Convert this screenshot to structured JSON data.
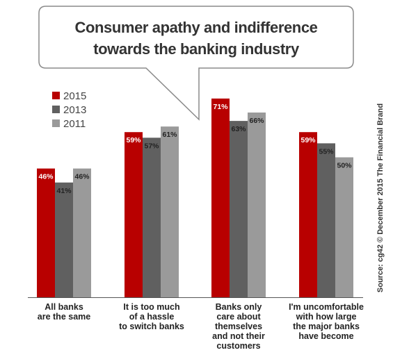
{
  "chart_data": {
    "type": "bar",
    "title_lines": [
      "Consumer apathy and indifference",
      "towards the banking industry"
    ],
    "categories": [
      [
        "All banks",
        "are the same"
      ],
      [
        "It is too much",
        "of a hassle",
        "to switch banks"
      ],
      [
        "Banks only",
        "care about",
        "themselves",
        "and not their",
        "customers"
      ],
      [
        "I'm uncomfortable",
        "with how large",
        "the major banks",
        "have become"
      ]
    ],
    "series": [
      {
        "name": "2015",
        "color": "#b80000",
        "values": [
          46,
          59,
          71,
          59
        ],
        "labels": [
          "46%",
          "59%",
          "71%",
          "59%"
        ]
      },
      {
        "name": "2013",
        "color": "#606060",
        "values": [
          41,
          57,
          63,
          55
        ],
        "labels": [
          "41%",
          "57%",
          "63%",
          "55%"
        ]
      },
      {
        "name": "2011",
        "color": "#9a9a9a",
        "values": [
          46,
          61,
          66,
          50
        ],
        "labels": [
          "46%",
          "61%",
          "66%",
          "50%"
        ]
      }
    ],
    "ylim": [
      0,
      100
    ],
    "legend_position": "top-left",
    "grid": false,
    "baseline": true
  },
  "source": "Source: cg42 © December 2015 The Financial Brand"
}
